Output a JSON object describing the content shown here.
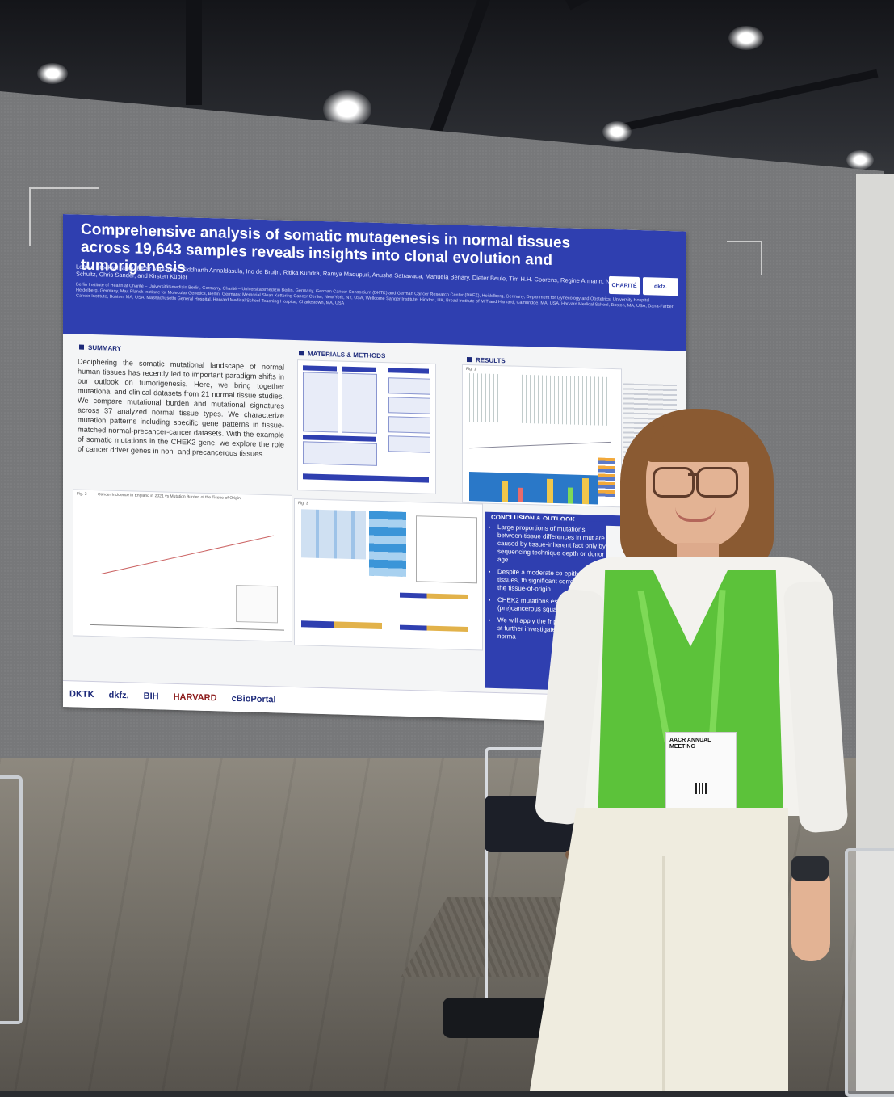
{
  "poster": {
    "title": "Comprehensive analysis of somatic mutagenesis in normal tissues across 19,643 samples reveals insights into clonal evolution and tumorigenesis",
    "authors": "Leonie Stockschläder, Eldar Abdullaev, Siddharth Annaldasula, Ino de Bruijn, Ritika Kundra, Ramya Madupuri, Anusha Satravada, Manuela Benary, Dieter Beule, Tim H.H. Coorens, Regine Armann, Nikolaus Schultz, Chris Sander, and Kirsten Kübler",
    "affiliations": "Berlin Institute of Health at Charité – Universitätsmedizin Berlin, Germany, Charité – Universitätsmedizin Berlin, Germany, German Cancer Consortium (DKTK) and German Cancer Research Center (DKFZ), Heidelberg, Germany, Department for Gynecology and Obstetrics, University Hospital Heidelberg, Germany, Max Planck Institute for Molecular Genetics, Berlin, Germany, Memorial Sloan Kettering Cancer Center, New York, NY, USA, Wellcome Sanger Institute, Hinxton, UK, Broad Institute of MIT and Harvard, Cambridge, MA, USA, Harvard Medical School, Boston, MA, USA, Dana-Farber Cancer Institute, Boston, MA, USA, Massachusetts General Hospital, Harvard Medical School Teaching Hospital, Charlestown, MA, USA",
    "logos": {
      "charite": "CHARITÉ",
      "dkfz": "dkfz."
    },
    "sections": {
      "summary": "SUMMARY",
      "methods": "MATERIALS & METHODS",
      "results": "RESULTS",
      "conclusion": "CONCLUSION & OUTLOOK"
    },
    "summary_text": "Deciphering the somatic mutational landscape of normal human tissues has recently led to important paradigm shifts in our outlook on tumorigenesis. Here, we bring together mutational and clinical datasets from 21 normal tissue studies. We compare mutational burden and mutational signatures across 37 analyzed normal tissue types. We characterize mutation patterns including specific gene patterns in tissue-matched normal-precancer-cancer datasets. With the example of somatic mutations in the CHEK2 gene, we explore the role of cancer driver genes in non- and precancerous tissues.",
    "fig_labels": {
      "fig1": "Fig. 1",
      "fig2": "Fig. 2",
      "fig3": "Fig. 3"
    },
    "fig2_title": "Cancer Incidence in England in 2021 vs Mutation Burden of the Tissue-of-Origin",
    "conclusion_items": [
      "Large proportions of mutations between-tissue differences in mut are caused by tissue-inherent fact only by sequencing technique depth or donor age",
      "Despite a moderate co epithelial tissues, th significant correlation in the tissue-of-origin",
      "CHEK2 mutations esophageal epith (pre)cancerous squa",
      "We will apply the fr proof-of-concept st further investigate t mutations on norma"
    ],
    "footer_logos": [
      "DKTK",
      "dkfz.",
      "BIH",
      "HARVARD",
      "cBioPortal"
    ]
  },
  "badge": {
    "event": "AACR ANNUAL MEETING"
  },
  "colors": {
    "poster_blue": "#2f3fb0",
    "board_gray": "#77787a",
    "vest_green": "#5cc23a",
    "lanyard_green": "#7ed957"
  }
}
